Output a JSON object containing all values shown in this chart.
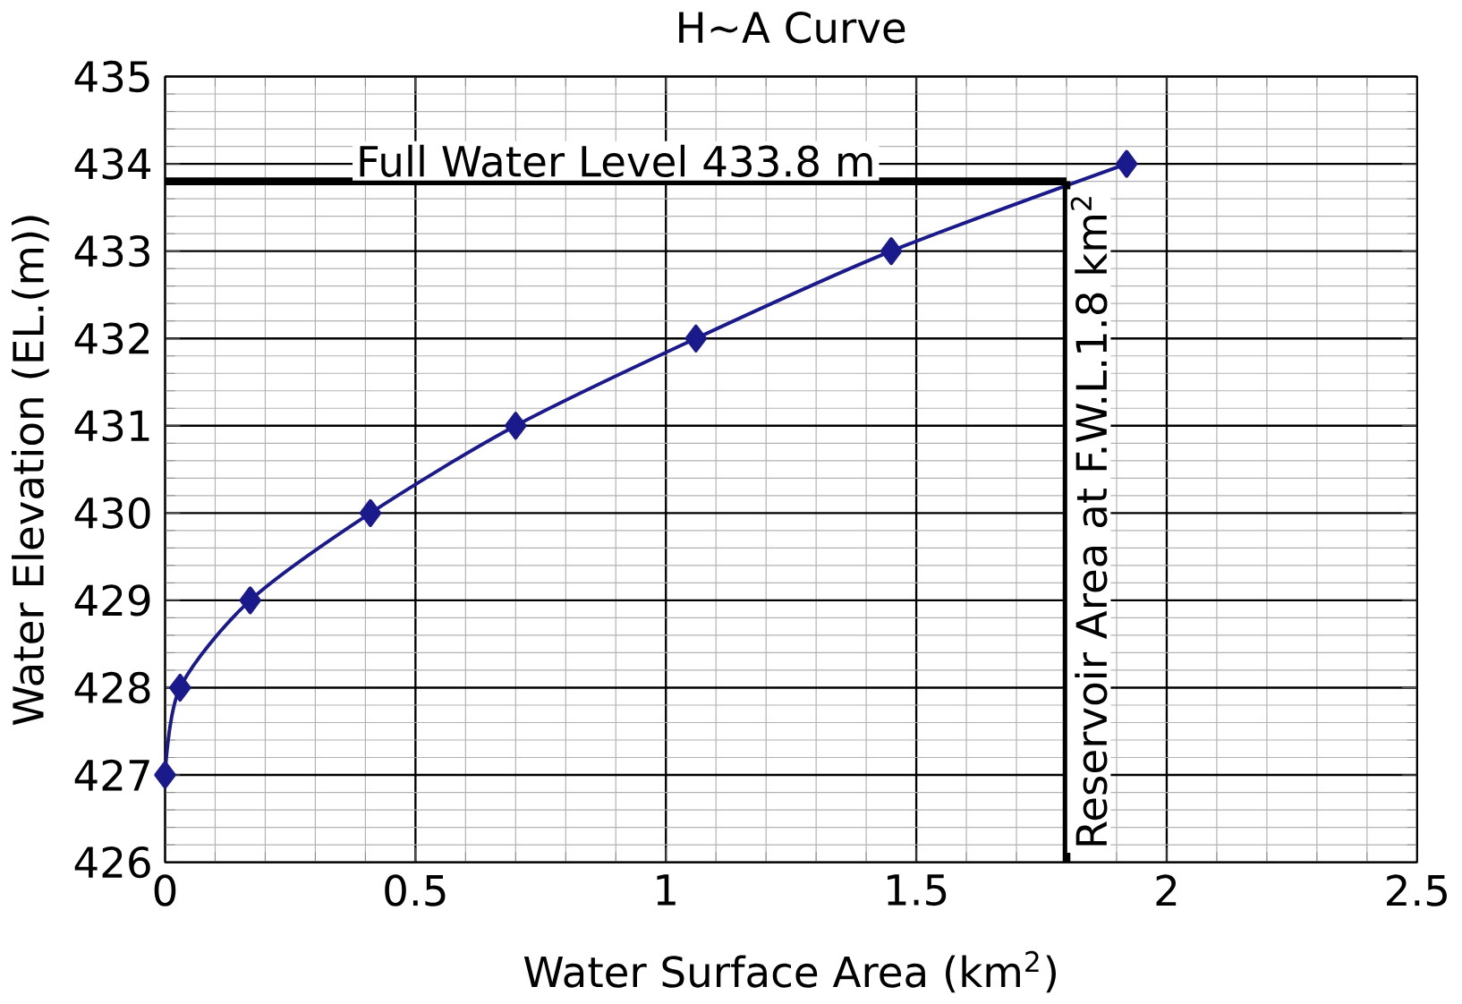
{
  "chart_data": {
    "type": "line",
    "title": "H~A Curve",
    "xlabel": "Water Surface Area (km$^{2}$)",
    "ylabel": "Water Elevation (EL.(m))",
    "x": [
      0,
      0.03,
      0.17,
      0.41,
      0.7,
      1.06,
      1.45,
      1.92
    ],
    "series": [
      {
        "color": "#1a1a8c",
        "values": [
          427,
          428,
          429,
          430,
          431,
          432,
          433,
          434
        ]
      }
    ],
    "xlim": [
      0,
      2.5
    ],
    "xticks": [
      0,
      0.5,
      1,
      1.5,
      2,
      2.5
    ],
    "ylim": [
      426,
      435
    ],
    "yticks": [
      426,
      427,
      428,
      429,
      430,
      431,
      432,
      433,
      434,
      435
    ],
    "grid": true,
    "marker": "diamond",
    "line_style": "solid",
    "ref_lines": [
      {
        "axis": "y",
        "value": 433.8,
        "label": "Full Water Level 433.8 m",
        "color": "#000000"
      },
      {
        "axis": "x",
        "value": 1.8,
        "label": "Reservoir Area at F.W.L.1.8 km$^{2}$",
        "color": "#000000"
      }
    ]
  }
}
